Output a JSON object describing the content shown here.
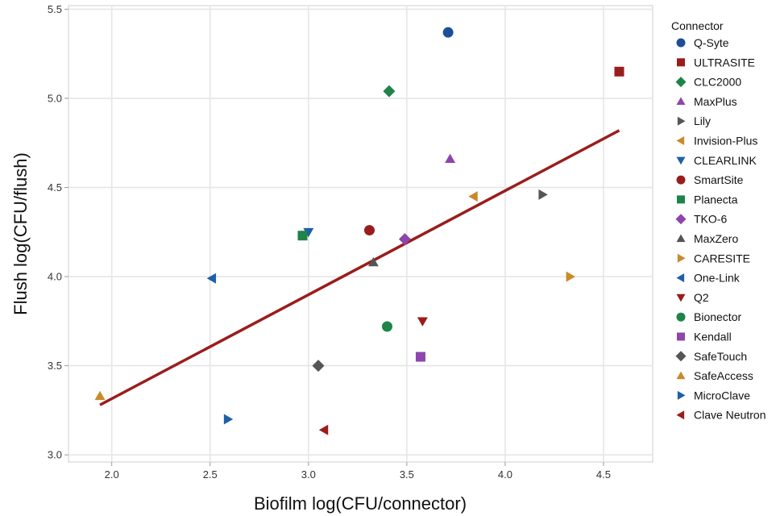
{
  "chart_data": {
    "type": "scatter",
    "title": "",
    "xlabel": "Biofilm log(CFU/connector)",
    "ylabel": "Flush log(CFU/flush)",
    "xlim": [
      1.78,
      4.75
    ],
    "ylim": [
      2.96,
      5.52
    ],
    "xticks": [
      "2.0",
      "2.5",
      "3.0",
      "3.5",
      "4.0",
      "4.5"
    ],
    "yticks": [
      "3.0",
      "3.5",
      "4.0",
      "4.5",
      "5.0",
      "5.5"
    ],
    "xtick_values": [
      2.0,
      2.5,
      3.0,
      3.5,
      4.0,
      4.5
    ],
    "ytick_values": [
      3.0,
      3.5,
      4.0,
      4.5,
      5.0,
      5.5
    ],
    "grid": true,
    "legend_title": "Connector",
    "legend_position": "right",
    "series": [
      {
        "name": "Q-Syte",
        "marker": "circle",
        "color": "#1f4e99",
        "x": 3.71,
        "y": 5.37
      },
      {
        "name": "ULTRASITE",
        "marker": "square",
        "color": "#9b1c1c",
        "x": 4.58,
        "y": 5.15
      },
      {
        "name": "CLC2000",
        "marker": "diamond",
        "color": "#1e8449",
        "x": 3.41,
        "y": 5.04
      },
      {
        "name": "MaxPlus",
        "marker": "triangle-up",
        "color": "#8e44ad",
        "x": 3.72,
        "y": 4.66
      },
      {
        "name": "Lily",
        "marker": "triangle-right",
        "color": "#555555",
        "x": 4.19,
        "y": 4.46
      },
      {
        "name": "Invision-Plus",
        "marker": "triangle-left",
        "color": "#c98a2a",
        "x": 3.84,
        "y": 4.45
      },
      {
        "name": "CLEARLINK",
        "marker": "triangle-down",
        "color": "#1f5fa8",
        "x": 3.0,
        "y": 4.25
      },
      {
        "name": "SmartSite",
        "marker": "circle",
        "color": "#9b1c1c",
        "x": 3.31,
        "y": 4.26
      },
      {
        "name": "Planecta",
        "marker": "square",
        "color": "#1e8449",
        "x": 2.97,
        "y": 4.23
      },
      {
        "name": "TKO-6",
        "marker": "diamond",
        "color": "#8e44ad",
        "x": 3.49,
        "y": 4.21
      },
      {
        "name": "MaxZero",
        "marker": "triangle-up",
        "color": "#555555",
        "x": 3.33,
        "y": 4.08
      },
      {
        "name": "CARESITE",
        "marker": "triangle-right",
        "color": "#c98a2a",
        "x": 4.33,
        "y": 4.0
      },
      {
        "name": "One-Link",
        "marker": "triangle-left",
        "color": "#1f5fa8",
        "x": 2.51,
        "y": 3.99
      },
      {
        "name": "Q2",
        "marker": "triangle-down",
        "color": "#9b1c1c",
        "x": 3.58,
        "y": 3.75
      },
      {
        "name": "Bionector",
        "marker": "circle",
        "color": "#1e8449",
        "x": 3.4,
        "y": 3.72
      },
      {
        "name": "Kendall",
        "marker": "square",
        "color": "#8e44ad",
        "x": 3.57,
        "y": 3.55
      },
      {
        "name": "SafeTouch",
        "marker": "diamond",
        "color": "#555555",
        "x": 3.05,
        "y": 3.5
      },
      {
        "name": "SafeAccess",
        "marker": "triangle-up",
        "color": "#c98a2a",
        "x": 1.94,
        "y": 3.33
      },
      {
        "name": "MicroClave",
        "marker": "triangle-right",
        "color": "#1f5fa8",
        "x": 2.59,
        "y": 3.2
      },
      {
        "name": "Clave Neutron",
        "marker": "triangle-left",
        "color": "#9b1c1c",
        "x": 3.08,
        "y": 3.14
      }
    ],
    "trend_line": {
      "color": "#9b1c1c",
      "x": [
        1.94,
        4.58
      ],
      "y": [
        3.28,
        4.82
      ]
    }
  }
}
